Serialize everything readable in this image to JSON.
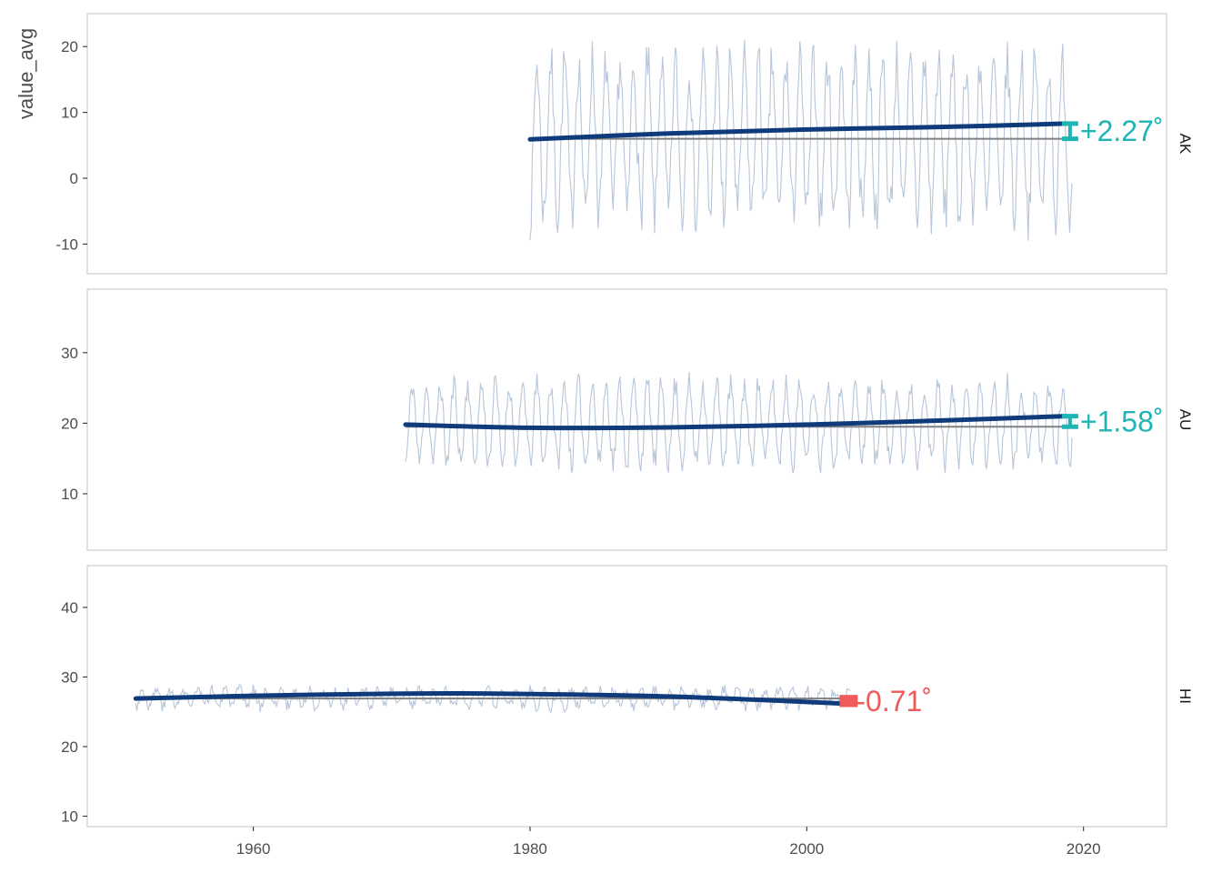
{
  "chart_data": {
    "type": "line",
    "title": "",
    "ylabel": "value_avg",
    "xlabel": "",
    "xlim": [
      1948,
      2026
    ],
    "x_ticks": [
      1960,
      1980,
      2000,
      2020
    ],
    "x_tick_labels": [
      "1960",
      "1980",
      "2000",
      "2020"
    ],
    "grid": false,
    "colors": {
      "raw": "#b7c6da",
      "trend": "#0f3b7a",
      "baseline": "#808080",
      "positive": "#1fb5b5",
      "negative": "#ef5a5a",
      "panel_border": "#cccccc"
    },
    "facets": [
      {
        "strip": "AK",
        "ylim": [
          -14.5,
          25
        ],
        "y_ticks": [
          -10,
          0,
          10,
          20
        ],
        "y_tick_labels": [
          "-10",
          "0",
          "10",
          "20"
        ],
        "raw": {
          "x_start": 1980.0,
          "x_end": 2019.2,
          "mean": 6.0,
          "amplitude": 11.5,
          "noise": 4.0,
          "seed": 7
        },
        "trend": [
          [
            1980,
            5.9
          ],
          [
            1990,
            6.8
          ],
          [
            2000,
            7.4
          ],
          [
            2010,
            7.8
          ],
          [
            2018.7,
            8.3
          ]
        ],
        "baseline": {
          "x_start": 1980,
          "x_end": 2019.2,
          "y": 6.0
        },
        "annotation": {
          "label": "+2.27˚",
          "x": 2018.7,
          "y_top": 8.3,
          "y_bottom": 6.0,
          "sign": "positive"
        }
      },
      {
        "strip": "AU",
        "ylim": [
          2,
          39
        ],
        "y_ticks": [
          10,
          20,
          30
        ],
        "y_tick_labels": [
          "10",
          "20",
          "30"
        ],
        "raw": {
          "x_start": 1971.0,
          "x_end": 2019.2,
          "mean": 20.0,
          "amplitude": 5.5,
          "noise": 1.8,
          "seed": 11
        },
        "trend": [
          [
            1971,
            19.8
          ],
          [
            1980,
            19.35
          ],
          [
            1990,
            19.4
          ],
          [
            2000,
            19.8
          ],
          [
            2010,
            20.4
          ],
          [
            2018.7,
            21.0
          ]
        ],
        "baseline": {
          "x_start": 1971,
          "x_end": 2019.2,
          "y": 19.5
        },
        "annotation": {
          "label": "+1.58˚",
          "x": 2018.7,
          "y_top": 21.0,
          "y_bottom": 19.5,
          "sign": "positive"
        }
      },
      {
        "strip": "HI",
        "ylim": [
          8.5,
          46
        ],
        "y_ticks": [
          10,
          20,
          30,
          40
        ],
        "y_tick_labels": [
          "10",
          "20",
          "30",
          "40"
        ],
        "raw": {
          "x_start": 1951.5,
          "x_end": 2003.2,
          "mean": 27.0,
          "amplitude": 1.2,
          "noise": 0.9,
          "seed": 3
        },
        "trend": [
          [
            1951.5,
            26.9
          ],
          [
            1960,
            27.3
          ],
          [
            1970,
            27.6
          ],
          [
            1978,
            27.6
          ],
          [
            1990,
            27.2
          ],
          [
            2002.5,
            26.2
          ]
        ],
        "baseline": {
          "x_start": 1951.5,
          "x_end": 2003.2,
          "y": 26.9
        },
        "annotation": {
          "label": "-0.71˚",
          "x": 2002.5,
          "y_top": 26.9,
          "y_bottom": 26.2,
          "sign": "negative"
        }
      }
    ]
  }
}
